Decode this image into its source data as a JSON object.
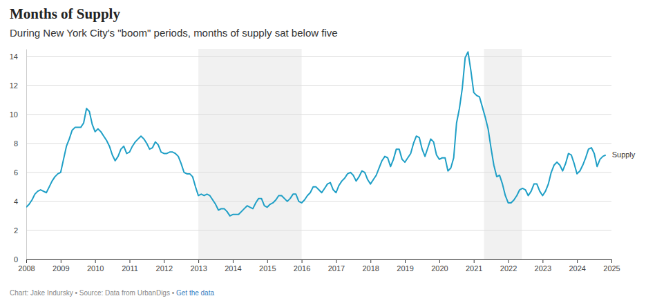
{
  "chart_data": {
    "type": "line",
    "title": "Months of Supply",
    "subtitle": "During New York City's \"boom\" periods, months of supply sat below five",
    "source": "Chart: Jake Indursky • Source: Data from UrbanDigs • ",
    "source_link": "Get the data",
    "x": [
      2008,
      2008.083,
      2008.167,
      2008.25,
      2008.333,
      2008.417,
      2008.5,
      2008.583,
      2008.667,
      2008.75,
      2008.833,
      2008.917,
      2009,
      2009.083,
      2009.167,
      2009.25,
      2009.333,
      2009.417,
      2009.5,
      2009.583,
      2009.667,
      2009.75,
      2009.833,
      2009.917,
      2010,
      2010.083,
      2010.167,
      2010.25,
      2010.333,
      2010.417,
      2010.5,
      2010.583,
      2010.667,
      2010.75,
      2010.833,
      2010.917,
      2011,
      2011.083,
      2011.167,
      2011.25,
      2011.333,
      2011.417,
      2011.5,
      2011.583,
      2011.667,
      2011.75,
      2011.833,
      2011.917,
      2012,
      2012.083,
      2012.167,
      2012.25,
      2012.333,
      2012.417,
      2012.5,
      2012.583,
      2012.667,
      2012.75,
      2012.833,
      2012.917,
      2013,
      2013.083,
      2013.167,
      2013.25,
      2013.333,
      2013.417,
      2013.5,
      2013.583,
      2013.667,
      2013.75,
      2013.833,
      2013.917,
      2014,
      2014.083,
      2014.167,
      2014.25,
      2014.333,
      2014.417,
      2014.5,
      2014.583,
      2014.667,
      2014.75,
      2014.833,
      2014.917,
      2015,
      2015.083,
      2015.167,
      2015.25,
      2015.333,
      2015.417,
      2015.5,
      2015.583,
      2015.667,
      2015.75,
      2015.833,
      2015.917,
      2016,
      2016.083,
      2016.167,
      2016.25,
      2016.333,
      2016.417,
      2016.5,
      2016.583,
      2016.667,
      2016.75,
      2016.833,
      2016.917,
      2017,
      2017.083,
      2017.167,
      2017.25,
      2017.333,
      2017.417,
      2017.5,
      2017.583,
      2017.667,
      2017.75,
      2017.833,
      2017.917,
      2018,
      2018.083,
      2018.167,
      2018.25,
      2018.333,
      2018.417,
      2018.5,
      2018.583,
      2018.667,
      2018.75,
      2018.833,
      2018.917,
      2019,
      2019.083,
      2019.167,
      2019.25,
      2019.333,
      2019.417,
      2019.5,
      2019.583,
      2019.667,
      2019.75,
      2019.833,
      2019.917,
      2020,
      2020.083,
      2020.167,
      2020.25,
      2020.333,
      2020.417,
      2020.5,
      2020.583,
      2020.667,
      2020.75,
      2020.833,
      2020.917,
      2021,
      2021.083,
      2021.167,
      2021.25,
      2021.333,
      2021.417,
      2021.5,
      2021.583,
      2021.667,
      2021.75,
      2021.833,
      2021.917,
      2022,
      2022.083,
      2022.167,
      2022.25,
      2022.333,
      2022.417,
      2022.5,
      2022.583,
      2022.667,
      2022.75,
      2022.833,
      2022.917,
      2023,
      2023.083,
      2023.167,
      2023.25,
      2023.333,
      2023.417,
      2023.5,
      2023.583,
      2023.667,
      2023.75,
      2023.833,
      2023.917,
      2024,
      2024.083,
      2024.167,
      2024.25,
      2024.333,
      2024.417,
      2024.5,
      2024.583,
      2024.667,
      2024.75,
      2024.833
    ],
    "series": [
      {
        "name": "Supply",
        "color": "#1f9fc6",
        "values": [
          3.6,
          3.8,
          4.1,
          4.5,
          4.7,
          4.8,
          4.7,
          4.6,
          5.0,
          5.4,
          5.7,
          5.9,
          6.0,
          6.9,
          7.8,
          8.3,
          8.9,
          9.1,
          9.1,
          9.1,
          9.4,
          10.4,
          10.2,
          9.3,
          8.8,
          9.0,
          8.8,
          8.5,
          8.2,
          7.8,
          7.2,
          6.8,
          7.1,
          7.6,
          7.8,
          7.3,
          7.4,
          7.8,
          8.1,
          8.3,
          8.5,
          8.3,
          8.0,
          7.6,
          7.7,
          8.1,
          7.9,
          7.4,
          7.3,
          7.3,
          7.4,
          7.4,
          7.3,
          7.1,
          6.6,
          6.0,
          5.9,
          5.9,
          5.7,
          5.0,
          4.4,
          4.5,
          4.4,
          4.5,
          4.4,
          4.1,
          3.8,
          3.4,
          3.5,
          3.5,
          3.3,
          3.0,
          3.1,
          3.1,
          3.1,
          3.3,
          3.5,
          3.7,
          3.6,
          3.5,
          3.9,
          4.2,
          4.2,
          3.7,
          3.6,
          3.8,
          3.9,
          4.1,
          4.4,
          4.4,
          4.2,
          4.0,
          4.2,
          4.5,
          4.5,
          4.0,
          3.9,
          4.1,
          4.4,
          4.6,
          5.0,
          5.0,
          4.8,
          4.6,
          4.9,
          5.2,
          5.3,
          4.8,
          4.6,
          5.1,
          5.4,
          5.6,
          5.9,
          6.0,
          5.8,
          5.4,
          5.7,
          6.1,
          6.0,
          5.5,
          5.2,
          5.5,
          5.8,
          6.3,
          6.8,
          7.1,
          7.0,
          6.4,
          6.9,
          7.6,
          7.6,
          6.9,
          6.7,
          7.0,
          7.3,
          8.0,
          8.5,
          8.4,
          7.6,
          7.1,
          7.7,
          8.3,
          8.1,
          7.2,
          6.9,
          7.0,
          7.0,
          6.1,
          6.3,
          7.0,
          9.4,
          10.4,
          11.8,
          13.9,
          14.3,
          13.0,
          11.5,
          11.3,
          11.2,
          10.5,
          9.8,
          9.0,
          7.7,
          6.5,
          5.7,
          5.8,
          5.2,
          4.4,
          3.9,
          3.9,
          4.1,
          4.4,
          4.8,
          4.9,
          4.8,
          4.4,
          4.7,
          5.2,
          5.2,
          4.7,
          4.4,
          4.7,
          5.2,
          6.0,
          6.5,
          6.7,
          6.5,
          6.1,
          6.6,
          7.3,
          7.2,
          6.6,
          5.9,
          6.1,
          6.5,
          7.0,
          7.6,
          7.7,
          7.3,
          6.4,
          6.9,
          7.1,
          7.2
        ]
      }
    ],
    "shaded_periods": [
      [
        2013,
        2016
      ],
      [
        2021.3,
        2022.4
      ]
    ],
    "xlim": [
      2008,
      2025
    ],
    "xticks": [
      2008,
      2009,
      2010,
      2011,
      2012,
      2013,
      2014,
      2015,
      2016,
      2017,
      2018,
      2019,
      2020,
      2021,
      2022,
      2023,
      2024,
      2025
    ],
    "ylim": [
      0,
      14.5
    ],
    "yticks": [
      0,
      2,
      4,
      6,
      8,
      10,
      12,
      14
    ],
    "grid": true
  }
}
